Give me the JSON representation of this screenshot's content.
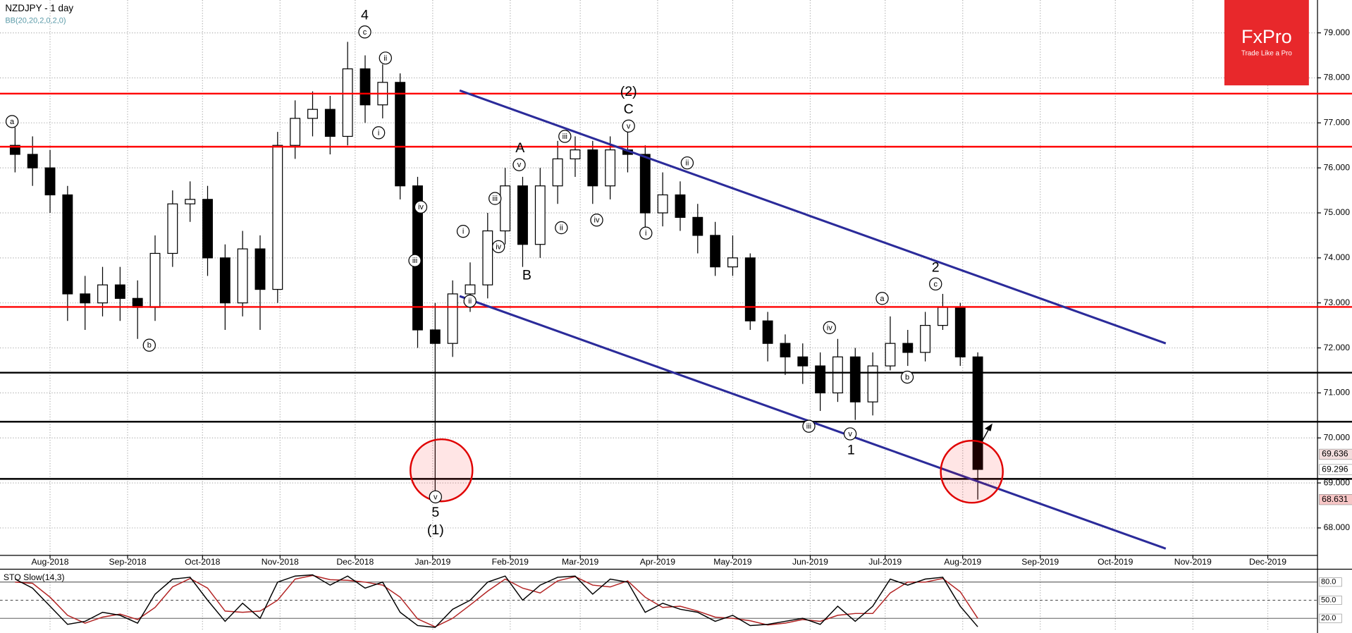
{
  "chart_data": {
    "type": "candlestick",
    "title": "NZDJPY - 1 day",
    "subtitle": "BB(20,20,2,0,2,0)",
    "x": [
      -2,
      -1,
      0,
      1,
      2,
      3,
      4,
      5,
      6,
      7,
      8,
      9,
      10,
      11,
      12,
      13,
      14,
      15,
      16,
      17,
      18,
      19,
      20,
      21,
      22,
      23,
      24,
      25,
      26,
      27,
      28,
      29,
      30,
      31,
      32,
      33,
      34,
      35,
      36,
      37,
      38,
      39,
      40,
      41,
      42,
      43,
      44,
      45,
      46,
      47,
      48,
      49,
      50,
      51,
      52,
      53
    ],
    "open": [
      76.5,
      76.3,
      76.0,
      75.4,
      73.2,
      73.0,
      73.4,
      73.1,
      72.9,
      74.1,
      75.2,
      75.3,
      74.0,
      73.0,
      74.2,
      73.3,
      76.5,
      77.1,
      77.3,
      76.7,
      78.2,
      77.4,
      77.9,
      75.6,
      72.4,
      72.1,
      73.2,
      73.4,
      74.6,
      75.6,
      74.3,
      75.6,
      76.2,
      76.4,
      75.6,
      76.4,
      76.3,
      75.0,
      75.4,
      74.9,
      74.5,
      73.8,
      74.0,
      72.6,
      72.1,
      71.8,
      71.6,
      71.0,
      71.8,
      70.8,
      71.6,
      72.1,
      71.9,
      72.5,
      72.9,
      71.8
    ],
    "high": [
      76.9,
      76.7,
      76.4,
      75.6,
      73.6,
      73.8,
      73.8,
      73.5,
      74.5,
      75.5,
      75.7,
      75.6,
      74.3,
      74.6,
      74.5,
      76.8,
      77.5,
      77.7,
      77.6,
      78.8,
      78.5,
      78.3,
      78.1,
      75.8,
      73.0,
      73.5,
      73.9,
      75.0,
      76.0,
      75.8,
      76.0,
      76.6,
      76.7,
      76.6,
      76.7,
      76.8,
      76.5,
      75.9,
      75.7,
      75.2,
      74.8,
      74.5,
      74.1,
      72.8,
      72.3,
      72.1,
      71.9,
      72.2,
      72.0,
      71.9,
      72.7,
      72.4,
      72.8,
      73.2,
      73.0,
      71.9
    ],
    "low": [
      75.9,
      75.6,
      75.0,
      72.6,
      72.4,
      72.7,
      72.6,
      72.2,
      72.6,
      73.8,
      74.8,
      73.6,
      72.4,
      72.7,
      72.4,
      73.0,
      76.2,
      76.7,
      76.3,
      76.5,
      77.0,
      77.1,
      75.3,
      72.0,
      68.7,
      71.8,
      72.8,
      73.1,
      74.3,
      73.8,
      74.0,
      75.2,
      75.8,
      75.2,
      75.3,
      75.9,
      74.6,
      74.7,
      74.6,
      74.1,
      73.6,
      73.6,
      72.4,
      71.7,
      71.4,
      71.2,
      70.6,
      70.8,
      70.4,
      70.5,
      71.5,
      71.6,
      71.7,
      72.4,
      71.6,
      68.631
    ],
    "close": [
      76.3,
      76.0,
      75.4,
      73.2,
      73.0,
      73.4,
      73.1,
      72.9,
      74.1,
      75.2,
      75.3,
      74.0,
      73.0,
      74.2,
      73.3,
      76.5,
      77.1,
      77.3,
      76.7,
      78.2,
      77.4,
      77.9,
      75.6,
      72.4,
      72.1,
      73.2,
      73.4,
      74.6,
      75.6,
      74.3,
      75.6,
      76.2,
      76.4,
      75.6,
      76.4,
      76.3,
      75.0,
      75.4,
      74.9,
      74.5,
      73.8,
      74.0,
      72.6,
      72.1,
      71.8,
      71.6,
      71.0,
      71.8,
      70.8,
      71.6,
      72.1,
      71.9,
      72.5,
      72.9,
      71.8,
      69.3
    ],
    "xlim": [
      -2.86,
      72.41
    ],
    "xticks": [
      {
        "value": 0,
        "label": "Aug-2018"
      },
      {
        "value": 4.43,
        "label": "Sep-2018"
      },
      {
        "value": 8.71,
        "label": "Oct-2018"
      },
      {
        "value": 13.14,
        "label": "Nov-2018"
      },
      {
        "value": 17.43,
        "label": "Dec-2018"
      },
      {
        "value": 21.86,
        "label": "Jan-2019"
      },
      {
        "value": 26.29,
        "label": "Feb-2019"
      },
      {
        "value": 30.29,
        "label": "Mar-2019"
      },
      {
        "value": 34.71,
        "label": "Apr-2019"
      },
      {
        "value": 39,
        "label": "May-2019"
      },
      {
        "value": 43.43,
        "label": "Jun-2019"
      },
      {
        "value": 47.71,
        "label": "Jul-2019"
      },
      {
        "value": 52.14,
        "label": "Aug-2019"
      },
      {
        "value": 56.57,
        "label": "Sep-2019"
      },
      {
        "value": 60.86,
        "label": "Oct-2019"
      },
      {
        "value": 65.29,
        "label": "Nov-2019"
      },
      {
        "value": 69.57,
        "label": "Dec-2019"
      }
    ],
    "ylim": [
      67.39,
      79.73
    ],
    "yticks": [
      {
        "value": 79,
        "label": "79.000"
      },
      {
        "value": 78,
        "label": "78.000"
      },
      {
        "value": 77,
        "label": "77.000"
      },
      {
        "value": 76,
        "label": "76.000"
      },
      {
        "value": 75,
        "label": "75.000"
      },
      {
        "value": 74,
        "label": "74.000"
      },
      {
        "value": 73,
        "label": "73.000"
      },
      {
        "value": 72,
        "label": "72.000"
      },
      {
        "value": 71,
        "label": "71.000"
      },
      {
        "value": 70,
        "label": "70.000"
      },
      {
        "value": 69,
        "label": "69.000"
      },
      {
        "value": 68,
        "label": "68.000"
      }
    ],
    "grid": true,
    "levels": [
      {
        "value": 77.65,
        "color": "#ff0000"
      },
      {
        "value": 76.47,
        "color": "#ff0000"
      },
      {
        "value": 72.91,
        "color": "#ff0000"
      },
      {
        "value": 71.45,
        "color": "#000000"
      },
      {
        "value": 70.36,
        "color": "#000000"
      },
      {
        "value": 69.09,
        "color": "#000000"
      }
    ],
    "channel": [
      {
        "x": [
          23.4,
          63.74
        ],
        "y": [
          77.72,
          72.1
        ],
        "color": "#2b2b9a"
      },
      {
        "x": [
          23.4,
          63.74
        ],
        "y": [
          73.15,
          67.54
        ],
        "color": "#2b2b9a"
      }
    ],
    "highlights": [
      {
        "x": 22.36,
        "y": 69.28
      },
      {
        "x": 52.66,
        "y": 69.25
      }
    ],
    "price_tags": [
      {
        "value": 69.636,
        "label": "69.636",
        "color": "#f3dede"
      },
      {
        "value": 69.296,
        "label": "69.296",
        "color": "#ffffff"
      },
      {
        "value": 68.631,
        "label": "68.631",
        "color": "#f7c6c6"
      }
    ],
    "annotations": [
      {
        "text": "a",
        "x": -2.17,
        "y": 77.03,
        "circled": true
      },
      {
        "text": "b",
        "x": 5.67,
        "y": 72.06,
        "circled": true
      },
      {
        "text": "4",
        "x": 17.98,
        "y": 79.38,
        "circled": false
      },
      {
        "text": "c",
        "x": 17.98,
        "y": 79.02,
        "circled": true
      },
      {
        "text": "ii",
        "x": 19.16,
        "y": 78.44,
        "circled": true
      },
      {
        "text": "i",
        "x": 18.77,
        "y": 76.78,
        "circled": true
      },
      {
        "text": "iv",
        "x": 21.18,
        "y": 75.13,
        "circled": true
      },
      {
        "text": "iii",
        "x": 20.84,
        "y": 73.94,
        "circled": true
      },
      {
        "text": "v",
        "x": 22.02,
        "y": 68.69,
        "circled": true
      },
      {
        "text": "5",
        "x": 22.02,
        "y": 68.33,
        "circled": false
      },
      {
        "text": "(1)",
        "x": 22.02,
        "y": 67.94,
        "circled": false
      },
      {
        "text": "i",
        "x": 23.6,
        "y": 74.59,
        "circled": true
      },
      {
        "text": "ii",
        "x": 23.99,
        "y": 73.04,
        "circled": true
      },
      {
        "text": "iii",
        "x": 25.42,
        "y": 75.32,
        "circled": true
      },
      {
        "text": "iv",
        "x": 25.62,
        "y": 74.25,
        "circled": true
      },
      {
        "text": "v",
        "x": 26.8,
        "y": 76.07,
        "circled": true
      },
      {
        "text": "A",
        "x": 26.85,
        "y": 76.43,
        "circled": false
      },
      {
        "text": "B",
        "x": 27.24,
        "y": 73.6,
        "circled": false
      },
      {
        "text": "ii",
        "x": 29.21,
        "y": 74.67,
        "circled": true
      },
      {
        "text": "iii",
        "x": 29.41,
        "y": 76.7,
        "circled": true
      },
      {
        "text": "iv",
        "x": 31.23,
        "y": 74.84,
        "circled": true
      },
      {
        "text": "(2)",
        "x": 33.05,
        "y": 77.68,
        "circled": false
      },
      {
        "text": "C",
        "x": 33.05,
        "y": 77.29,
        "circled": false
      },
      {
        "text": "v",
        "x": 33.05,
        "y": 76.93,
        "circled": true
      },
      {
        "text": "ii",
        "x": 36.4,
        "y": 76.11,
        "circled": true
      },
      {
        "text": "i",
        "x": 34.04,
        "y": 74.55,
        "circled": true
      },
      {
        "text": "iii",
        "x": 43.35,
        "y": 70.26,
        "circled": true
      },
      {
        "text": "iv",
        "x": 44.53,
        "y": 72.45,
        "circled": true
      },
      {
        "text": "v",
        "x": 45.71,
        "y": 70.09,
        "circled": true
      },
      {
        "text": "1",
        "x": 45.76,
        "y": 69.72,
        "circled": false
      },
      {
        "text": "a",
        "x": 47.54,
        "y": 73.1,
        "circled": true
      },
      {
        "text": "b",
        "x": 48.97,
        "y": 71.35,
        "circled": true
      },
      {
        "text": "c",
        "x": 50.59,
        "y": 73.42,
        "circled": true
      },
      {
        "text": "2",
        "x": 50.59,
        "y": 73.77,
        "circled": false
      }
    ],
    "oscillator": {
      "title": "STO Slow(14,3)",
      "ylim": [
        1.4,
        101.4
      ],
      "yticks": [
        {
          "value": 80,
          "label": "80.0"
        },
        {
          "value": 50,
          "label": "50.0"
        },
        {
          "value": 20,
          "label": "20.0"
        }
      ],
      "k_color": "#000000",
      "d_color": "#b22222",
      "k": [
        85,
        70,
        40,
        10,
        15,
        30,
        25,
        12,
        60,
        85,
        88,
        50,
        15,
        45,
        20,
        80,
        90,
        92,
        75,
        90,
        70,
        80,
        30,
        8,
        5,
        35,
        50,
        80,
        90,
        50,
        75,
        88,
        90,
        60,
        85,
        80,
        30,
        45,
        35,
        30,
        15,
        25,
        8,
        10,
        15,
        20,
        10,
        40,
        15,
        40,
        85,
        75,
        85,
        88,
        40,
        6
      ],
      "d": [
        80,
        78,
        55,
        25,
        12,
        22,
        27,
        18,
        38,
        72,
        86,
        70,
        32,
        30,
        32,
        50,
        85,
        91,
        84,
        83,
        80,
        75,
        55,
        19,
        6,
        20,
        42,
        65,
        85,
        70,
        62,
        82,
        89,
        75,
        72,
        82,
        55,
        38,
        40,
        32,
        22,
        20,
        16,
        9,
        12,
        18,
        15,
        25,
        28,
        28,
        62,
        80,
        80,
        86,
        64,
        20
      ]
    }
  },
  "logo": {
    "name": "FxPro",
    "tagline": "Trade Like a Pro"
  }
}
